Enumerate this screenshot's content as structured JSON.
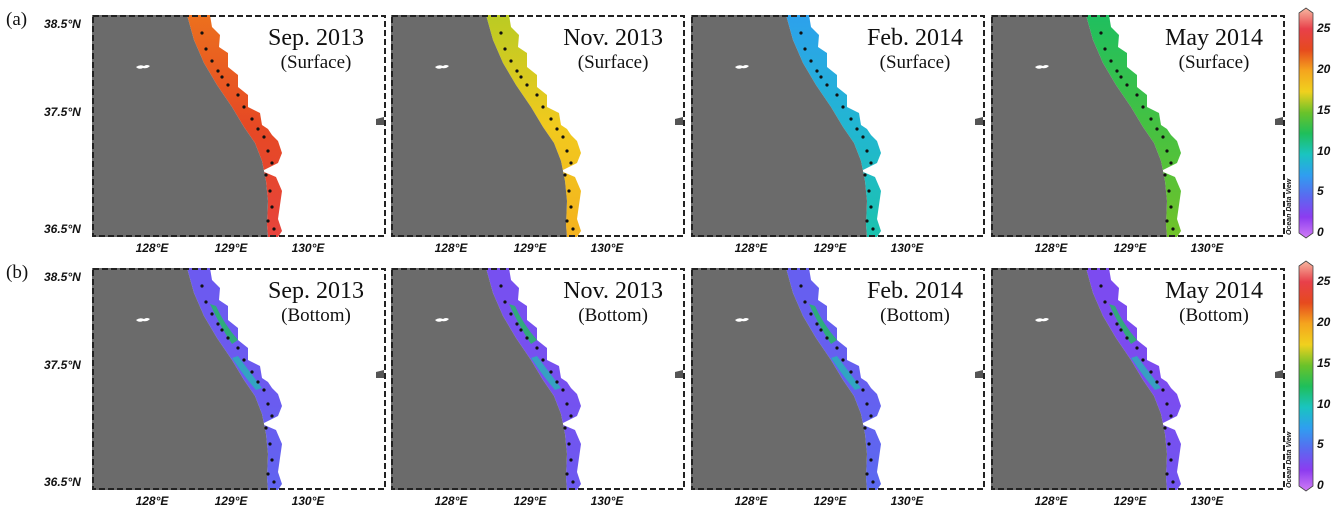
{
  "rows": [
    {
      "label": "(a)",
      "panels": [
        {
          "date": "Sep. 2013",
          "layer": "(Surface)",
          "color_level": 0.83
        },
        {
          "date": "Nov. 2013",
          "layer": "(Surface)",
          "color_level": 0.65
        },
        {
          "date": "Feb. 2014",
          "layer": "(Surface)",
          "color_level": 0.33
        },
        {
          "date": "May 2014",
          "layer": "(Surface)",
          "color_level": 0.5
        }
      ]
    },
    {
      "label": "(b)",
      "panels": [
        {
          "date": "Sep. 2013",
          "layer": "(Bottom)",
          "color_level": 0.15
        },
        {
          "date": "Nov. 2013",
          "layer": "(Bottom)",
          "color_level": 0.13
        },
        {
          "date": "Feb. 2014",
          "layer": "(Bottom)",
          "color_level": 0.16
        },
        {
          "date": "May 2014",
          "layer": "(Bottom)",
          "color_level": 0.12
        }
      ]
    }
  ],
  "lat_labels": [
    "38.5°N",
    "37.5°N",
    "36.5°N"
  ],
  "lon_labels": [
    "128°E",
    "129°E",
    "130°E"
  ],
  "colorbar": {
    "ticks": [
      "25",
      "20",
      "15",
      "10",
      "5",
      "0"
    ],
    "range": [
      0,
      27
    ],
    "colors": [
      "#f7b8a0",
      "#e8404a",
      "#e64a1e",
      "#f5a51e",
      "#f0d11e",
      "#6ac22a",
      "#1fbf5a",
      "#1ac4c0",
      "#2f9ef0",
      "#5a6af0",
      "#8c3cf0",
      "#d07cf5"
    ],
    "credit": "Ocean Data View"
  },
  "colors": {
    "land": "#6b6b6b",
    "sea_blank": "#ffffff",
    "station_dot": "#111111"
  }
}
